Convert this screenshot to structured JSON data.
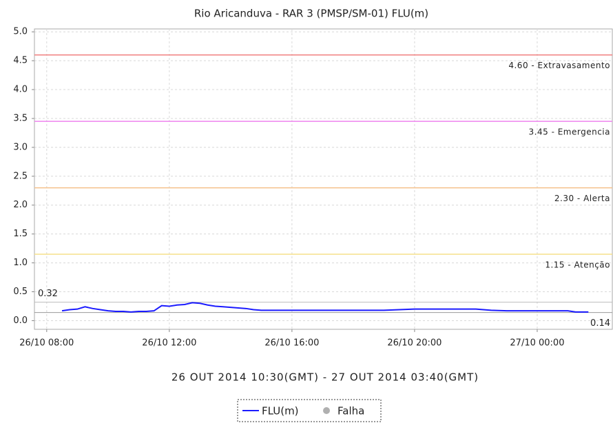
{
  "chart_data": {
    "type": "line",
    "title": "Rio Aricanduva - RAR 3 (PMSP/SM-01) FLU(m)",
    "x_label": "26 OUT 2014 10:30(GMT) - 27 OUT 2014 03:40(GMT)",
    "xlim": [
      7.6,
      26.45
    ],
    "xticks": [
      {
        "value": 8,
        "label": "26/10 08:00"
      },
      {
        "value": 12,
        "label": "26/10 12:00"
      },
      {
        "value": 16,
        "label": "26/10 16:00"
      },
      {
        "value": 20,
        "label": "26/10 20:00"
      },
      {
        "value": 24,
        "label": "27/10 00:00"
      }
    ],
    "ylim": [
      -0.15,
      5.05
    ],
    "yticks": [
      {
        "value": 0,
        "label": "0.0"
      },
      0.5,
      {
        "value": 1,
        "label": "1.0"
      },
      1.5,
      {
        "value": 2,
        "label": "2.0"
      },
      2.5,
      {
        "value": 3,
        "label": "3.0"
      },
      3.5,
      {
        "value": 4,
        "label": "4.0"
      },
      4.5,
      {
        "value": 5,
        "label": "5.0"
      }
    ],
    "grid": true,
    "x": [
      8.5,
      8.75,
      9,
      9.25,
      9.5,
      9.75,
      10,
      10.25,
      10.5,
      10.75,
      11,
      11.25,
      11.5,
      11.75,
      12,
      12.25,
      12.5,
      12.75,
      13,
      13.25,
      13.5,
      13.75,
      14,
      14.25,
      14.5,
      14.75,
      15,
      16,
      17,
      18,
      19,
      19.5,
      20,
      21,
      22,
      22.5,
      23,
      24,
      25,
      25.25,
      25.67
    ],
    "series": [
      {
        "name": "FLU(m)",
        "color": "#1a1aff",
        "values": [
          0.17,
          0.19,
          0.2,
          0.24,
          0.21,
          0.19,
          0.17,
          0.16,
          0.16,
          0.15,
          0.16,
          0.16,
          0.17,
          0.26,
          0.25,
          0.27,
          0.28,
          0.31,
          0.3,
          0.27,
          0.25,
          0.24,
          0.23,
          0.22,
          0.21,
          0.19,
          0.18,
          0.18,
          0.18,
          0.18,
          0.18,
          0.19,
          0.2,
          0.2,
          0.2,
          0.18,
          0.17,
          0.17,
          0.17,
          0.15,
          0.15
        ]
      },
      {
        "name": "Falha",
        "color": "#b0b0b0",
        "values": [
          null,
          null,
          null,
          null,
          null,
          null,
          null,
          null,
          null,
          null,
          null,
          null,
          null,
          null,
          null,
          null,
          null,
          null,
          null,
          null,
          null,
          null,
          null,
          null,
          null,
          null,
          null,
          null,
          null,
          null,
          null,
          null,
          null,
          null,
          null,
          null,
          null,
          null,
          null,
          null,
          null
        ]
      }
    ],
    "thresholds": [
      {
        "value": 4.6,
        "label": "4.60 - Extravasamento",
        "color": "#f08080"
      },
      {
        "value": 3.45,
        "label": "3.45 - Emergencia",
        "color": "#ee82ee"
      },
      {
        "value": 2.3,
        "label": "2.30 - Alerta",
        "color": "#f5c08a"
      },
      {
        "value": 1.15,
        "label": "1.15 - Atenção",
        "color": "#f5e08a"
      }
    ],
    "max_line": {
      "value": 0.32,
      "label": "0.32",
      "color": "#bbbbbb"
    },
    "min_line": {
      "value": 0.14,
      "label": "0.14",
      "color": "#999999"
    }
  }
}
